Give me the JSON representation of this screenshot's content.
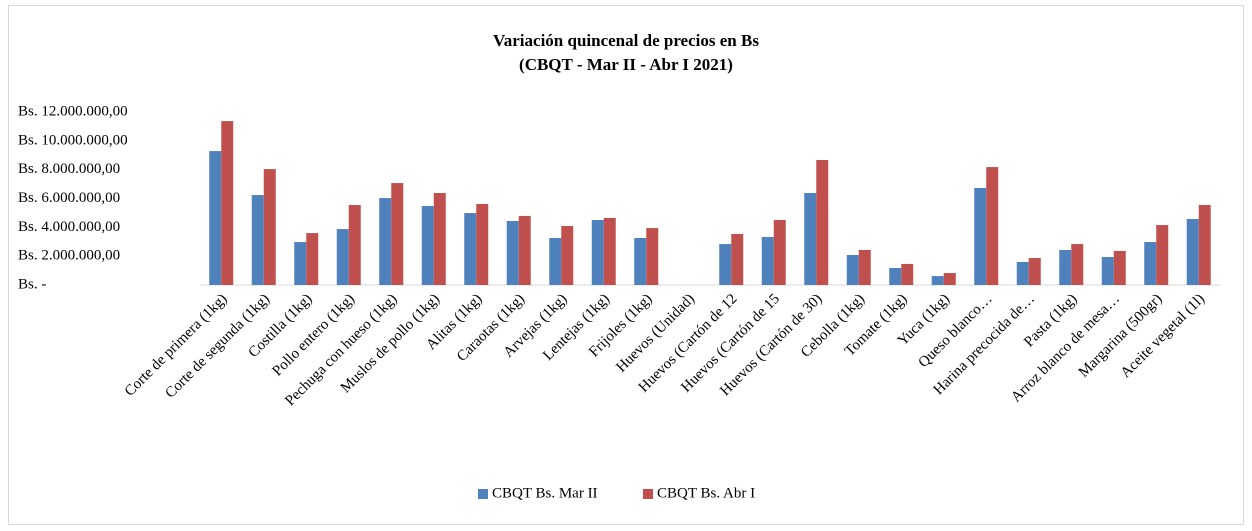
{
  "chart_data": {
    "type": "bar",
    "title": "Variación quincenal de precios en Bs",
    "subtitle": "(CBQT - Mar II - Abr I 2021)",
    "categories": [
      "Corte de primera (1kg)",
      "Corte de segunda (1kg)",
      "Costilla (1kg)",
      "Pollo entero (1kg)",
      "Pechuga con hueso (1kg)",
      "Muslos de pollo (1kg)",
      "Alitas (1kg)",
      "Caraotas (1kg)",
      "Arvejas (1kg)",
      "Lentejas (1kg)",
      "Frijoles (1kg)",
      "Huevos (Unidad)",
      "Huevos (Cartón de 12",
      "Huevos (Cartón de 15",
      "Huevos (Cartón de 30)",
      "Cebolla (1kg)",
      "Tomate (1kg)",
      "Yuca (1kg)",
      "Queso blanco…",
      "Harina precocida de…",
      "Pasta (1kg)",
      "Arroz blanco de mesa…",
      "Margarina (500gr)",
      "Aceite vegetal (1l)"
    ],
    "series": [
      {
        "name": "CBQT Bs. Mar II",
        "color": "#4f81bd",
        "values": [
          9290000,
          6240000,
          2980000,
          3880000,
          6030000,
          5480000,
          4990000,
          4440000,
          3260000,
          4510000,
          3260000,
          0,
          2840000,
          3330000,
          6380000,
          2080000,
          1180000,
          620000,
          6730000,
          1600000,
          2430000,
          1940000,
          2980000,
          4580000
        ]
      },
      {
        "name": "CBQT Bs. Abr I",
        "color": "#c0504d",
        "values": [
          11370000,
          8040000,
          3600000,
          5550000,
          7070000,
          6380000,
          5620000,
          4790000,
          4090000,
          4650000,
          3950000,
          0,
          3540000,
          4510000,
          8670000,
          2430000,
          1460000,
          830000,
          8180000,
          1870000,
          2840000,
          2360000,
          4160000,
          5550000
        ]
      }
    ],
    "ylim": [
      0,
      12000000
    ],
    "yticks": [
      {
        "value": 0,
        "label": "Bs. -"
      },
      {
        "value": 2000000,
        "label": "Bs. 2.000.000,00"
      },
      {
        "value": 4000000,
        "label": "Bs. 4.000.000,00"
      },
      {
        "value": 6000000,
        "label": "Bs. 6.000.000,00"
      },
      {
        "value": 8000000,
        "label": "Bs. 8.000.000,00"
      },
      {
        "value": 10000000,
        "label": "Bs. 10.000.000,00"
      },
      {
        "value": 12000000,
        "label": "Bs. 12.000.000,00"
      }
    ],
    "grid": false,
    "legend": "bottom"
  }
}
